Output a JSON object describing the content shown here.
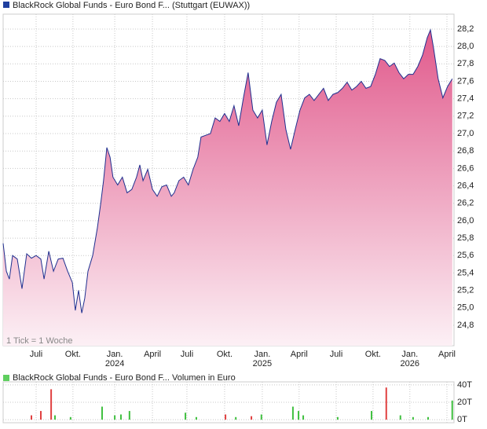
{
  "chart_data": [
    {
      "type": "area",
      "legend": "BlackRock Global Funds - Euro Bond F... (Stuttgart (EUWAX))",
      "note": "1 Tick = 1 Woche",
      "color": "#1f2f8f",
      "fill_top": "#e15a8c",
      "fill_bottom": "#fcf0f5",
      "legend_color": "#1f3f9f",
      "x": [
        0,
        1.1,
        2.1,
        3.2,
        4.8,
        6.4,
        8,
        9.6,
        11.2,
        12.8,
        13.9,
        15.5,
        17.1,
        18.7,
        20.3,
        21.9,
        23.5,
        24.5,
        25.6,
        26.7,
        27.7,
        28.8,
        30.4,
        32,
        33.1,
        34.1,
        35.2,
        36.3,
        37.3,
        38.9,
        40.5,
        42.1,
        43.7,
        45.3,
        46.4,
        47.5,
        49.1,
        50.7,
        52.3,
        53.9,
        55.5,
        57.1,
        58.1,
        59.7,
        61.3,
        62.9,
        64.5,
        66.1,
        67.2,
        68.8,
        70.4,
        72,
        73.6,
        75.2,
        76.8,
        78.4,
        80,
        81.6,
        83.2,
        84.8,
        86.4,
        88,
        89.6,
        91.2,
        92.8,
        94.4,
        96,
        97.6,
        99.2,
        100.8,
        102.4,
        104,
        105.6,
        107.2,
        108.8,
        110.4,
        112,
        113.6,
        115.2,
        116.8,
        118.4,
        120,
        121.6,
        123.2,
        124.8,
        126.4,
        128,
        129.6,
        131.2,
        132.8,
        134.4,
        136,
        137.6,
        139.2,
        140.8,
        142.4,
        144,
        145.1,
        146.1,
        147.7,
        149.3,
        150.9,
        152.5
      ],
      "values": [
        25.74,
        25.42,
        25.33,
        25.6,
        25.56,
        25.22,
        25.62,
        25.57,
        25.6,
        25.56,
        25.33,
        25.65,
        25.42,
        25.56,
        25.57,
        25.42,
        25.29,
        24.97,
        25.2,
        24.94,
        25.11,
        25.42,
        25.6,
        25.92,
        26.19,
        26.46,
        26.84,
        26.73,
        26.5,
        26.41,
        26.5,
        26.32,
        26.36,
        26.5,
        26.64,
        26.46,
        26.59,
        26.36,
        26.28,
        26.39,
        26.41,
        26.28,
        26.32,
        26.46,
        26.5,
        26.41,
        26.59,
        26.73,
        26.96,
        26.98,
        27.0,
        27.18,
        27.14,
        27.23,
        27.14,
        27.32,
        27.09,
        27.41,
        27.7,
        27.27,
        27.18,
        27.27,
        26.87,
        27.14,
        27.36,
        27.45,
        27.05,
        26.82,
        27.05,
        27.27,
        27.41,
        27.45,
        27.38,
        27.45,
        27.52,
        27.38,
        27.45,
        27.47,
        27.52,
        27.59,
        27.5,
        27.54,
        27.6,
        27.52,
        27.54,
        27.68,
        27.86,
        27.84,
        27.77,
        27.81,
        27.7,
        27.63,
        27.68,
        27.68,
        27.77,
        27.9,
        28.1,
        28.19,
        27.99,
        27.63,
        27.41,
        27.54,
        27.63
      ],
      "xlim": [
        0,
        153.1
      ],
      "xticks": [
        {
          "value": 11.2,
          "label": "Juli"
        },
        {
          "value": 23.7,
          "label": "Okt."
        },
        {
          "value": 37.9,
          "label": "Jan.",
          "year": "2024"
        },
        {
          "value": 50.7,
          "label": "April"
        },
        {
          "value": 62.4,
          "label": "Juli"
        },
        {
          "value": 75.2,
          "label": "Okt."
        },
        {
          "value": 88.0,
          "label": "Jan.",
          "year": "2025"
        },
        {
          "value": 100.5,
          "label": "April"
        },
        {
          "value": 113.1,
          "label": "Juli"
        },
        {
          "value": 125.6,
          "label": "Okt."
        },
        {
          "value": 138.1,
          "label": "Jan.",
          "year": "2026"
        },
        {
          "value": 150.7,
          "label": "April"
        }
      ],
      "ylim": [
        24.565,
        28.371
      ],
      "yticks": [
        {
          "value": 24.8,
          "label": "24,8"
        },
        {
          "value": 25,
          "label": "25,0"
        },
        {
          "value": 25.2,
          "label": "25,2"
        },
        {
          "value": 25.4,
          "label": "25,4"
        },
        {
          "value": 25.6,
          "label": "25,6"
        },
        {
          "value": 25.8,
          "label": "25,8"
        },
        {
          "value": 26,
          "label": "26,0"
        },
        {
          "value": 26.2,
          "label": "26,2"
        },
        {
          "value": 26.4,
          "label": "26,4"
        },
        {
          "value": 26.6,
          "label": "26,6"
        },
        {
          "value": 26.8,
          "label": "26,8"
        },
        {
          "value": 27,
          "label": "27,0"
        },
        {
          "value": 27.2,
          "label": "27,2"
        },
        {
          "value": 27.4,
          "label": "27,4"
        },
        {
          "value": 27.6,
          "label": "27,6"
        },
        {
          "value": 27.8,
          "label": "27,8"
        },
        {
          "value": 28,
          "label": "28,0"
        },
        {
          "value": 28.2,
          "label": "28,2"
        }
      ],
      "grid": true
    },
    {
      "type": "bar",
      "legend": "BlackRock Global Funds - Euro Bond F... Volumen in Euro",
      "legend_color": "#5fcf5f",
      "x": [
        9.6,
        12.8,
        16.3,
        17.6,
        22.9,
        33.6,
        37.9,
        40,
        42.9,
        61.9,
        65.6,
        75.5,
        79,
        84.3,
        87.7,
        98.4,
        100.3,
        101.9,
        113.6,
        125.1,
        130.1,
        134.9,
        139.2,
        144.3,
        152.5
      ],
      "values": [
        5,
        10,
        35,
        5,
        3,
        15,
        5,
        6,
        10,
        8,
        3,
        6,
        3,
        4,
        6,
        15,
        10,
        5,
        3,
        10,
        37,
        5,
        3,
        3,
        22
      ],
      "colors": [
        "#e04040",
        "#e04040",
        "#e04040",
        "#40c040",
        "#40c040",
        "#40c040",
        "#40c040",
        "#40c040",
        "#40c040",
        "#40c040",
        "#40c040",
        "#e04040",
        "#40c040",
        "#e04040",
        "#40c040",
        "#40c040",
        "#40c040",
        "#40c040",
        "#40c040",
        "#40c040",
        "#e04040",
        "#40c040",
        "#40c040",
        "#40c040",
        "#40c040"
      ],
      "xlim": [
        0,
        153.1
      ],
      "ylim": [
        -3.5,
        43.5
      ],
      "yticks": [
        {
          "value": 0,
          "label": "0T"
        },
        {
          "value": 20,
          "label": "20T"
        },
        {
          "value": 40,
          "label": "40T"
        }
      ],
      "grid": true
    }
  ]
}
